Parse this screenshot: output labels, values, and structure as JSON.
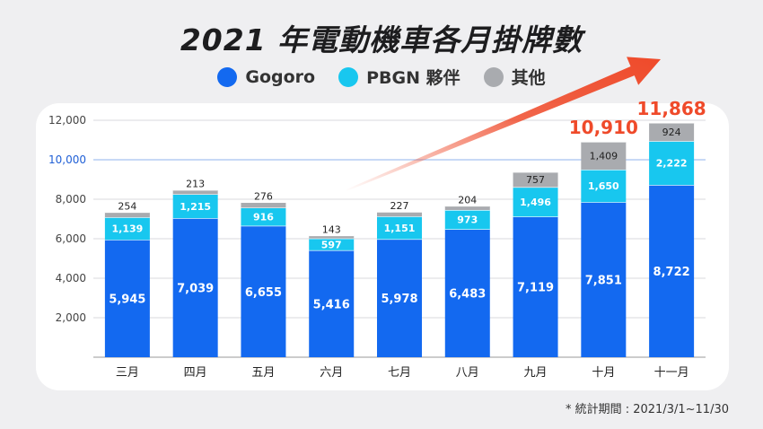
{
  "title": "2021 年電動機車各月掛牌數",
  "footnote": "* 統計期間 : 2021/3/1~11/30",
  "colors": {
    "gogoro": "#1369f0",
    "pbgn": "#18c7ef",
    "other": "#a9abaf",
    "highlight": "#ef4a2a",
    "total_label": "#ef4a2a"
  },
  "chart_data": {
    "type": "bar",
    "stacked": true,
    "categories": [
      "三月",
      "四月",
      "五月",
      "六月",
      "七月",
      "八月",
      "九月",
      "十月",
      "十一月"
    ],
    "series": [
      {
        "name": "Gogoro",
        "color": "#1369f0",
        "values": [
          5945,
          7039,
          6655,
          5416,
          5978,
          6483,
          7119,
          7851,
          8722
        ],
        "labels": [
          "5,945",
          "7,039",
          "6,655",
          "5,416",
          "5,978",
          "6,483",
          "7,119",
          "7,851",
          "8,722"
        ]
      },
      {
        "name": "PBGN 夥伴",
        "color": "#18c7ef",
        "values": [
          1139,
          1215,
          916,
          597,
          1151,
          973,
          1496,
          1650,
          2222
        ],
        "labels": [
          "1,139",
          "1,215",
          "916",
          "597",
          "1,151",
          "973",
          "1,496",
          "1,650",
          "2,222"
        ]
      },
      {
        "name": "其他",
        "color": "#a9abaf",
        "values": [
          254,
          213,
          276,
          143,
          227,
          204,
          757,
          1409,
          924
        ],
        "labels": [
          "254",
          "213",
          "276",
          "143",
          "227",
          "204",
          "757",
          "1,409",
          "924"
        ]
      }
    ],
    "totals_highlighted": [
      {
        "category": "十月",
        "label": "10,910"
      },
      {
        "category": "十一月",
        "label": "11,868"
      }
    ],
    "ylim": [
      0,
      12000
    ],
    "yticks": [
      2000,
      4000,
      6000,
      8000,
      10000,
      12000
    ],
    "ytick_labels": [
      "2,000",
      "4,000",
      "6,000",
      "8,000",
      "10,000",
      "12,000"
    ],
    "highlight_tick": "10,000",
    "grid": true,
    "legend_position": "top-center",
    "trend_arrow": true
  }
}
